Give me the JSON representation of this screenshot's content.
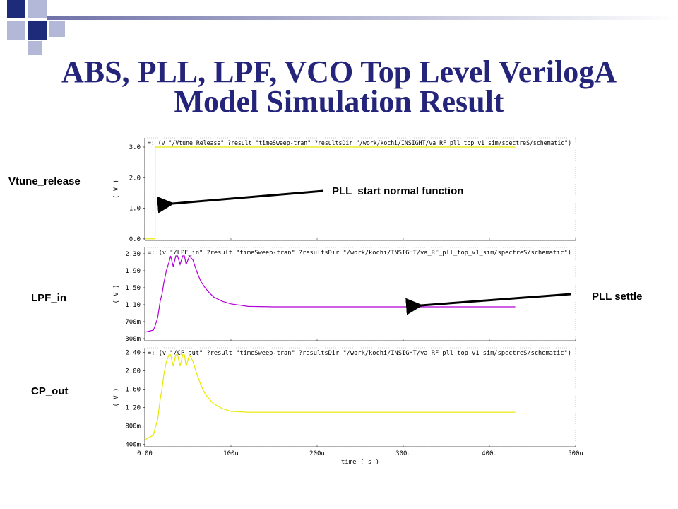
{
  "slide": {
    "title_line1": "ABS, PLL, LPF, VCO Top Level VerilogA",
    "title_line2": "Model Simulation Result",
    "colors": {
      "title": "#24247a",
      "decor_dark": "#1e2a7a",
      "decor_light": "#b4b8d8",
      "title_rule": "#8a8ab8"
    }
  },
  "labels": {
    "vtune": "Vtune_release",
    "lpf": "LPF_in",
    "cp": "CP_out",
    "annotation_start": "PLL  start normal function",
    "annotation_settle": "PLL settle"
  },
  "chart_data": [
    {
      "type": "line",
      "panel": "Vtune_release",
      "expression": "=: (v \"/Vtune_Release\" ?result \"timeSweep-tran\" ?resultsDir \"/work/kochi/INSIGHT/va_RF_pll_top_v1_sim/spectreS/schematic\")",
      "ylabel": "( V )",
      "ytick_labels": [
        "3.0",
        "2.0",
        "1.0",
        "0.0"
      ],
      "yticks": [
        3.0,
        2.0,
        1.0,
        0.0
      ],
      "ylim": [
        -0.05,
        3.3
      ],
      "xlim": [
        0,
        500
      ],
      "color": "#e8e800",
      "x": [
        0,
        12,
        12.01,
        430
      ],
      "y": [
        0,
        0,
        3.0,
        3.0
      ]
    },
    {
      "type": "line",
      "panel": "LPF_in",
      "expression": "=: (v \"/LPF_in\" ?result \"timeSweep-tran\" ?resultsDir \"/work/kochi/INSIGHT/va_RF_pll_top_v1_sim/spectreS/schematic\")",
      "ylabel": "( V )",
      "ytick_labels": [
        "2.30",
        "1.90",
        "1.50",
        "1.10",
        "700m",
        "300m"
      ],
      "yticks": [
        2.3,
        1.9,
        1.5,
        1.1,
        0.7,
        0.3
      ],
      "ylim": [
        0.25,
        2.45
      ],
      "xlim": [
        0,
        500
      ],
      "color": "#b000d8",
      "x": [
        0,
        10,
        12,
        15,
        18,
        20,
        22,
        25,
        28,
        30,
        33,
        36,
        38,
        41,
        44,
        46,
        48,
        52,
        56,
        60,
        65,
        70,
        75,
        80,
        90,
        100,
        120,
        150,
        200,
        250,
        300,
        350,
        400,
        430
      ],
      "y": [
        0.45,
        0.5,
        0.6,
        0.8,
        1.2,
        1.35,
        1.6,
        1.9,
        2.1,
        2.25,
        2.0,
        2.25,
        2.25,
        2.05,
        2.25,
        2.25,
        2.05,
        2.25,
        2.15,
        1.9,
        1.65,
        1.5,
        1.38,
        1.28,
        1.18,
        1.12,
        1.06,
        1.05,
        1.05,
        1.05,
        1.05,
        1.05,
        1.05,
        1.05
      ]
    },
    {
      "type": "line",
      "panel": "CP_out",
      "expression": "=: (v \"/CP_out\" ?result \"timeSweep-tran\" ?resultsDir \"/work/kochi/INSIGHT/va_RF_pll_top_v1_sim/spectreS/schematic\")",
      "ylabel": "( V )",
      "ytick_labels": [
        "2.40",
        "2.00",
        "1.60",
        "1.20",
        "800m",
        "400m"
      ],
      "yticks": [
        2.4,
        2.0,
        1.6,
        1.2,
        0.8,
        0.4
      ],
      "ylim": [
        0.35,
        2.5
      ],
      "xlim": [
        0,
        500
      ],
      "xlabel": "time ( s )",
      "xtick_labels": [
        "0.00",
        "100u",
        "200u",
        "300u",
        "400u",
        "500u"
      ],
      "xticks": [
        0,
        100,
        200,
        300,
        400,
        500
      ],
      "color": "#e8e800",
      "x": [
        0,
        10,
        12,
        15,
        18,
        20,
        22,
        25,
        28,
        30,
        33,
        36,
        38,
        41,
        44,
        46,
        48,
        52,
        56,
        60,
        65,
        70,
        75,
        80,
        90,
        100,
        120,
        150,
        200,
        250,
        300,
        350,
        400,
        430
      ],
      "y": [
        0.5,
        0.6,
        0.75,
        0.95,
        1.4,
        1.6,
        1.9,
        2.2,
        2.35,
        2.35,
        2.1,
        2.35,
        2.35,
        2.1,
        2.35,
        2.35,
        2.1,
        2.35,
        2.2,
        1.95,
        1.7,
        1.5,
        1.38,
        1.28,
        1.18,
        1.12,
        1.1,
        1.1,
        1.1,
        1.1,
        1.1,
        1.1,
        1.1,
        1.1
      ]
    }
  ]
}
